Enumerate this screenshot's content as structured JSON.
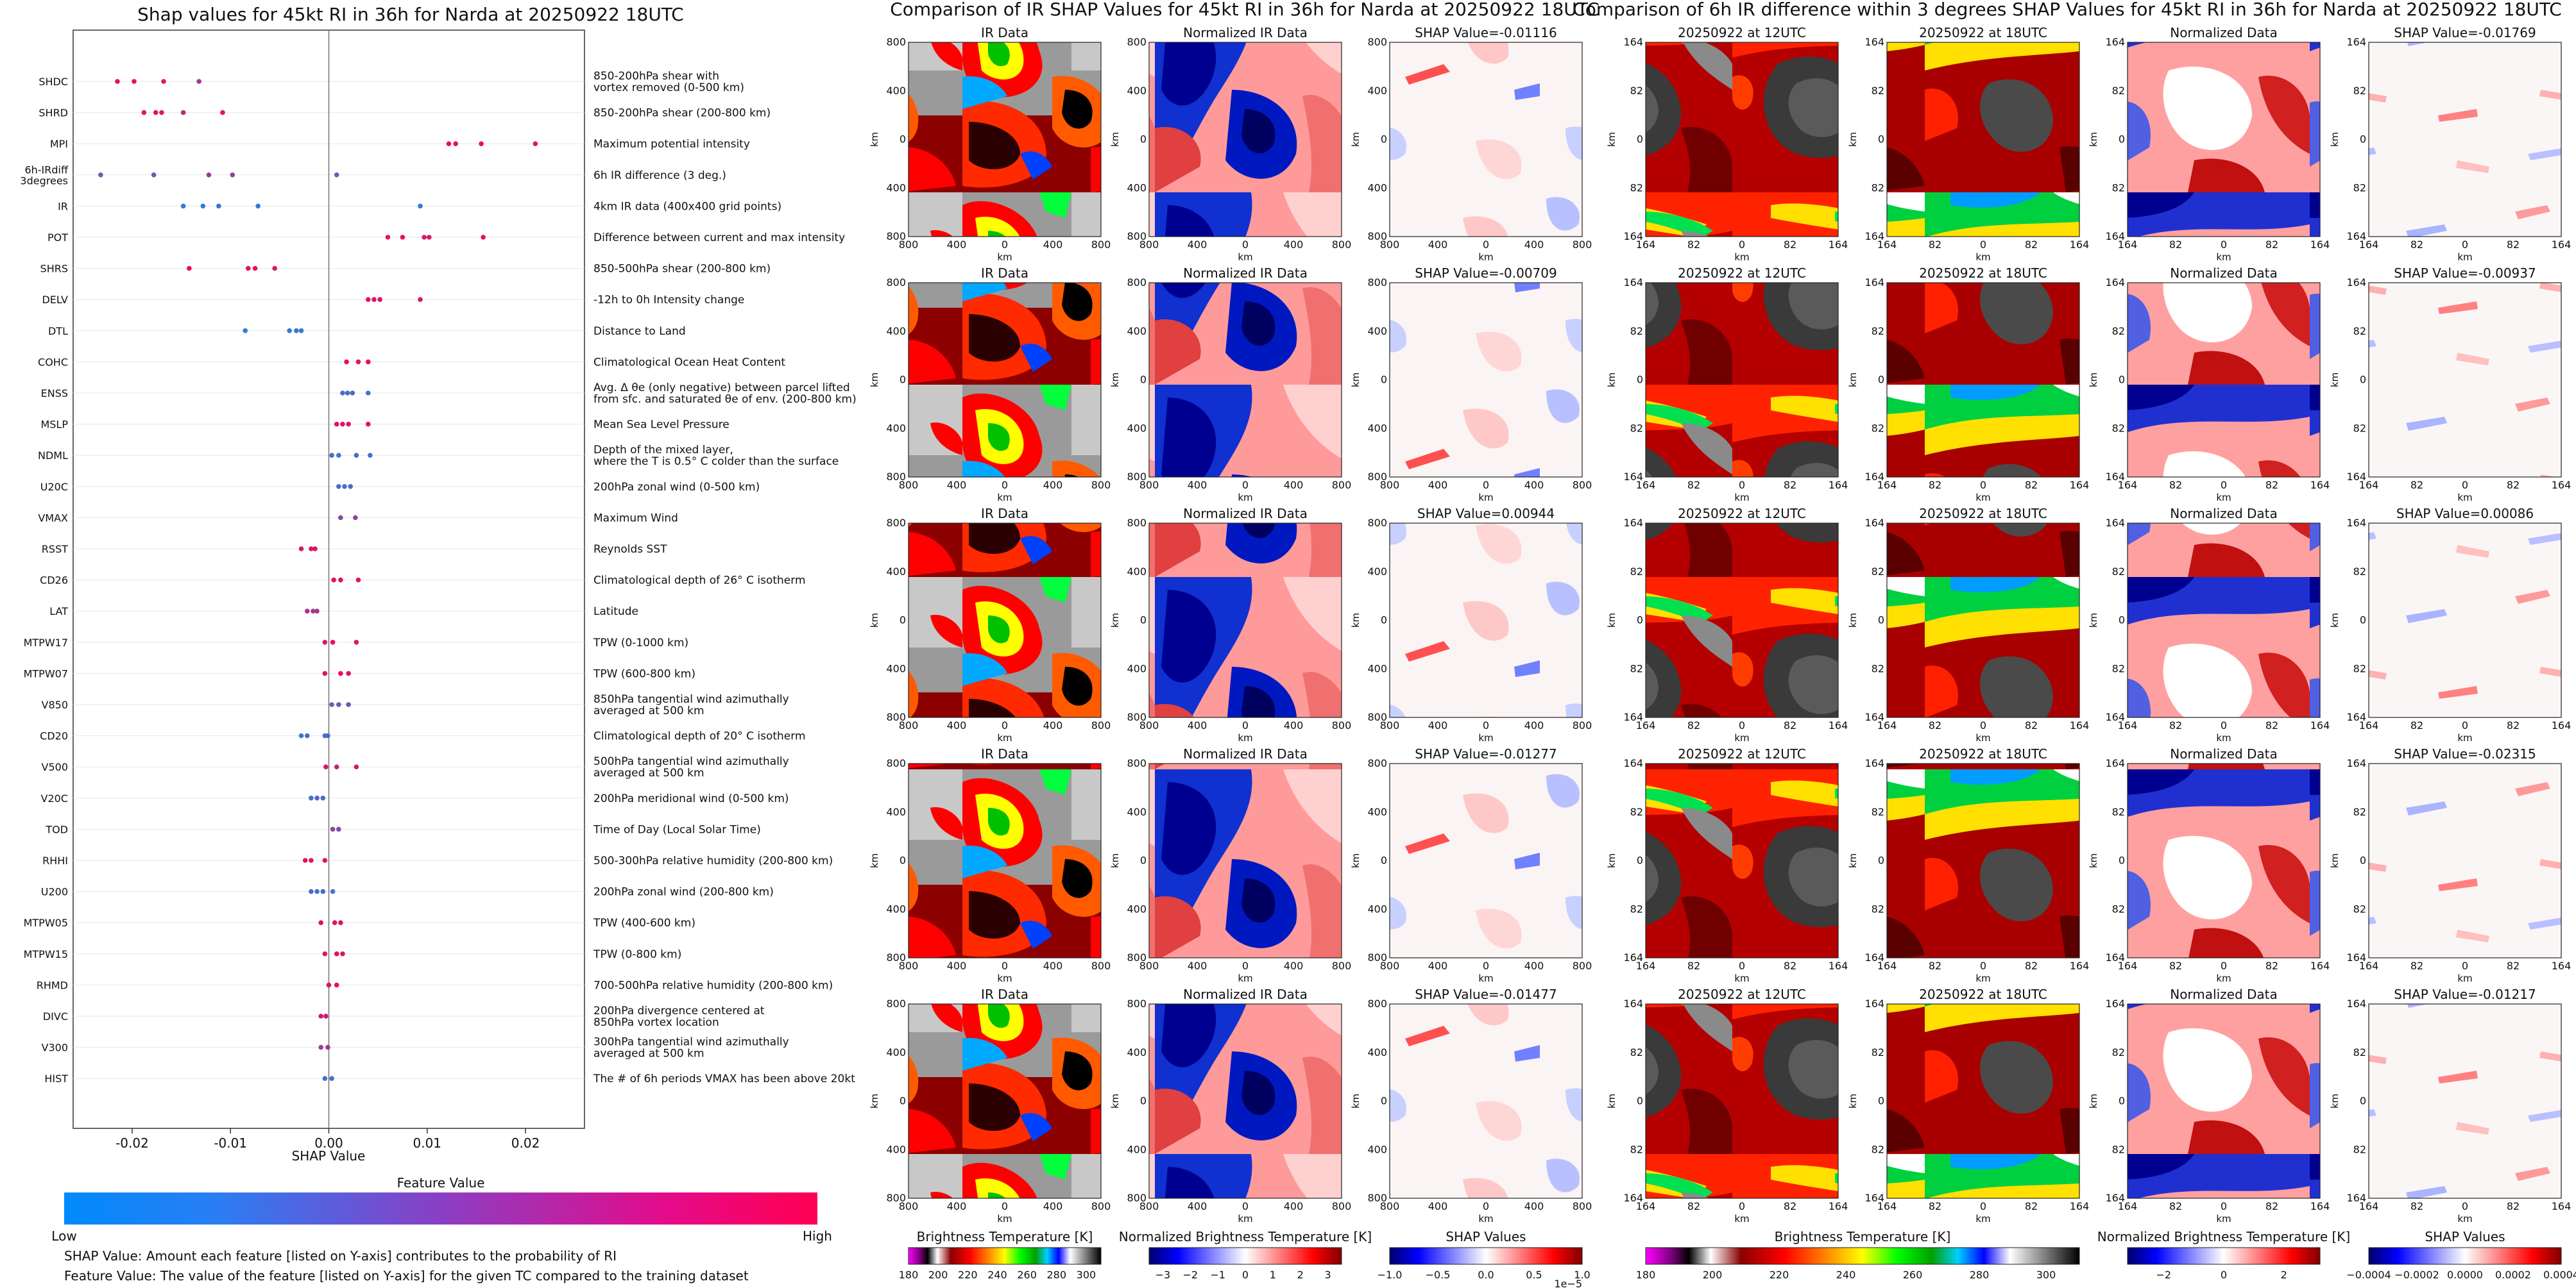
{
  "chart_data": [
    {
      "type": "scatter",
      "title": "Shap values for 45kt RI in 36h for Narda at 20250922 18UTC",
      "xlabel": "SHAP Value",
      "xlim": [
        -0.026,
        0.026
      ],
      "xticks": [
        "-0.02",
        "-0.01",
        "0.00",
        "0.01",
        "0.02"
      ],
      "xtick_values": [
        -0.02,
        -0.01,
        0.0,
        0.01,
        0.02
      ],
      "colorbar": {
        "title": "Feature Value",
        "low": "Low",
        "high": "High",
        "low_color": "#1e88e5",
        "high_color": "#ff0052"
      },
      "notes": [
        "SHAP Value: Amount each feature [listed on Y-axis] contributes to the probability of RI",
        "Feature Value: The value of the feature [listed on Y-axis] for the given TC compared to the training dataset"
      ],
      "features": [
        {
          "name": "SHDC",
          "desc": "850-200hPa shear with\nvortex removed (0-500 km)",
          "points": [
            [
              -0.0215,
              0.9
            ],
            [
              -0.0198,
              0.9
            ],
            [
              -0.0168,
              0.85
            ],
            [
              -0.0132,
              0.6
            ]
          ]
        },
        {
          "name": "SHRD",
          "desc": "850-200hPa shear (200-800 km)",
          "points": [
            [
              -0.0188,
              0.85
            ],
            [
              -0.0176,
              0.9
            ],
            [
              -0.017,
              0.8
            ],
            [
              -0.0148,
              0.7
            ],
            [
              -0.0108,
              0.85
            ]
          ]
        },
        {
          "name": "MPI",
          "desc": "Maximum potential intensity",
          "points": [
            [
              0.0122,
              0.9
            ],
            [
              0.0129,
              0.85
            ],
            [
              0.0155,
              0.9
            ],
            [
              0.021,
              0.8
            ]
          ]
        },
        {
          "name": "6h-IRdiff\n3degrees",
          "desc": "6h IR difference (3 deg.)",
          "points": [
            [
              -0.0232,
              0.3
            ],
            [
              -0.0178,
              0.35
            ],
            [
              -0.0122,
              0.55
            ],
            [
              -0.0098,
              0.5
            ],
            [
              0.0008,
              0.3
            ]
          ]
        },
        {
          "name": "IR",
          "desc": "4km IR data (400x400 grid points)",
          "points": [
            [
              -0.0148,
              0.1
            ],
            [
              -0.0128,
              0.1
            ],
            [
              -0.0112,
              0.15
            ],
            [
              -0.0072,
              0.1
            ],
            [
              0.0093,
              0.1
            ]
          ]
        },
        {
          "name": "POT",
          "desc": "Difference between current and max intensity",
          "points": [
            [
              0.006,
              0.85
            ],
            [
              0.0075,
              0.9
            ],
            [
              0.0097,
              0.8
            ],
            [
              0.0102,
              0.85
            ],
            [
              0.0157,
              0.9
            ]
          ]
        },
        {
          "name": "SHRS",
          "desc": "850-500hPa shear (200-800 km)",
          "points": [
            [
              -0.0142,
              0.9
            ],
            [
              -0.0082,
              0.85
            ],
            [
              -0.0075,
              0.9
            ],
            [
              -0.0055,
              0.8
            ]
          ]
        },
        {
          "name": "DELV",
          "desc": "-12h to 0h Intensity change",
          "points": [
            [
              0.004,
              0.9
            ],
            [
              0.0046,
              0.85
            ],
            [
              0.0052,
              0.9
            ],
            [
              0.0093,
              0.85
            ]
          ]
        },
        {
          "name": "DTL",
          "desc": "Distance to Land",
          "points": [
            [
              -0.0085,
              0.1
            ],
            [
              -0.004,
              0.1
            ],
            [
              -0.0033,
              0.15
            ],
            [
              -0.0028,
              0.1
            ]
          ]
        },
        {
          "name": "COHC",
          "desc": "Climatological Ocean Heat Content",
          "points": [
            [
              0.0018,
              0.9
            ],
            [
              0.003,
              0.85
            ],
            [
              0.004,
              0.9
            ]
          ]
        },
        {
          "name": "ENSS",
          "desc": "Avg. Δ θe (only negative) between parcel lifted\nfrom sfc. and saturated θe of env. (200-800 km)",
          "points": [
            [
              0.0014,
              0.2
            ],
            [
              0.0019,
              0.2
            ],
            [
              0.0024,
              0.25
            ],
            [
              0.004,
              0.15
            ]
          ]
        },
        {
          "name": "MSLP",
          "desc": "Mean Sea Level Pressure",
          "points": [
            [
              0.0008,
              0.85
            ],
            [
              0.0014,
              0.9
            ],
            [
              0.002,
              0.85
            ],
            [
              0.004,
              0.9
            ]
          ]
        },
        {
          "name": "NDML",
          "desc": "Depth of the mixed layer,\nwhere the T is 0.5° C colder than the surface",
          "points": [
            [
              0.0003,
              0.2
            ],
            [
              0.001,
              0.15
            ],
            [
              0.0028,
              0.2
            ],
            [
              0.0042,
              0.15
            ]
          ]
        },
        {
          "name": "U20C",
          "desc": "200hPa zonal wind (0-500 km)",
          "points": [
            [
              0.001,
              0.2
            ],
            [
              0.0016,
              0.15
            ],
            [
              0.0022,
              0.2
            ]
          ]
        },
        {
          "name": "VMAX",
          "desc": "Maximum Wind",
          "points": [
            [
              0.0012,
              0.45
            ],
            [
              0.0027,
              0.5
            ]
          ]
        },
        {
          "name": "RSST",
          "desc": "Reynolds SST",
          "points": [
            [
              -0.0028,
              0.85
            ],
            [
              -0.0018,
              0.8
            ],
            [
              -0.0014,
              0.9
            ]
          ]
        },
        {
          "name": "CD26",
          "desc": "Climatological depth of 26° C isotherm",
          "points": [
            [
              0.0005,
              0.85
            ],
            [
              0.0012,
              0.9
            ],
            [
              0.003,
              0.85
            ]
          ]
        },
        {
          "name": "LAT",
          "desc": "Latitude",
          "points": [
            [
              -0.0022,
              0.6
            ],
            [
              -0.0016,
              0.55
            ],
            [
              -0.0012,
              0.6
            ]
          ]
        },
        {
          "name": "MTPW17",
          "desc": "TPW (0-1000 km)",
          "points": [
            [
              -0.0004,
              0.85
            ],
            [
              0.0004,
              0.9
            ],
            [
              0.0028,
              0.85
            ]
          ]
        },
        {
          "name": "MTPW07",
          "desc": "TPW (600-800 km)",
          "points": [
            [
              -0.0004,
              0.85
            ],
            [
              0.0012,
              0.9
            ],
            [
              0.002,
              0.85
            ]
          ]
        },
        {
          "name": "V850",
          "desc": "850hPa tangential wind azimuthally\naveraged at 500 km",
          "points": [
            [
              0.0003,
              0.3
            ],
            [
              0.001,
              0.35
            ],
            [
              0.002,
              0.4
            ]
          ]
        },
        {
          "name": "CD20",
          "desc": "Climatological depth of 20° C isotherm",
          "points": [
            [
              -0.0028,
              0.15
            ],
            [
              -0.0022,
              0.2
            ],
            [
              -0.0004,
              0.15
            ],
            [
              -0.0001,
              0.2
            ]
          ]
        },
        {
          "name": "V500",
          "desc": "500hPa tangential wind azimuthally\naveraged at 500 km",
          "points": [
            [
              -0.0003,
              0.85
            ],
            [
              0.0008,
              0.7
            ],
            [
              0.0028,
              0.8
            ]
          ]
        },
        {
          "name": "V20C",
          "desc": "200hPa meridional wind (0-500 km)",
          "points": [
            [
              -0.0018,
              0.2
            ],
            [
              -0.0012,
              0.25
            ],
            [
              -0.0006,
              0.2
            ]
          ]
        },
        {
          "name": "TOD",
          "desc": "Time of Day (Local Solar Time)",
          "points": [
            [
              0.0004,
              0.5
            ],
            [
              0.001,
              0.45
            ]
          ]
        },
        {
          "name": "RHHI",
          "desc": "500-300hPa relative humidity (200-800 km)",
          "points": [
            [
              -0.0024,
              0.9
            ],
            [
              -0.0018,
              0.85
            ],
            [
              -0.0004,
              0.9
            ]
          ]
        },
        {
          "name": "U200",
          "desc": "200hPa zonal wind (200-800 km)",
          "points": [
            [
              -0.0018,
              0.2
            ],
            [
              -0.0012,
              0.15
            ],
            [
              -0.0006,
              0.2
            ],
            [
              0.0004,
              0.15
            ]
          ]
        },
        {
          "name": "MTPW05",
          "desc": "TPW (400-600 km)",
          "points": [
            [
              -0.0008,
              0.9
            ],
            [
              0.0006,
              0.85
            ],
            [
              0.0012,
              0.9
            ]
          ]
        },
        {
          "name": "MTPW15",
          "desc": "TPW (0-800 km)",
          "points": [
            [
              -0.0004,
              0.85
            ],
            [
              0.0008,
              0.9
            ],
            [
              0.0014,
              0.85
            ]
          ]
        },
        {
          "name": "RHMD",
          "desc": "700-500hPa relative humidity (200-800 km)",
          "points": [
            [
              0.0,
              0.85
            ],
            [
              0.0008,
              0.9
            ]
          ]
        },
        {
          "name": "DIVC",
          "desc": "200hPa divergence centered at\n850hPa vortex location",
          "points": [
            [
              -0.0008,
              0.8
            ],
            [
              -0.0003,
              0.85
            ]
          ]
        },
        {
          "name": "V300",
          "desc": "300hPa tangential wind azimuthally\naveraged at 500 km",
          "points": [
            [
              -0.0008,
              0.55
            ],
            [
              -0.0001,
              0.6
            ]
          ]
        },
        {
          "name": "HIST",
          "desc": "The # of 6h periods VMAX has been above 20kt",
          "points": [
            [
              -0.0004,
              0.2
            ],
            [
              0.0003,
              0.15
            ]
          ]
        }
      ]
    },
    {
      "type": "heatmap",
      "title": "Comparison of IR SHAP Values for 45kt RI in 36h for Narda at 20250922 18UTC",
      "rows": 5,
      "column_titles": [
        "IR Data",
        "Normalized IR Data",
        "SHAP Value"
      ],
      "shap_values": [
        "-0.01116",
        "-0.00709",
        "0.00944",
        "-0.01277",
        "-0.01477"
      ],
      "axis_label": "km",
      "xticks": [
        "800",
        "400",
        "0",
        "400",
        "800"
      ],
      "yticks": [
        "800",
        "400",
        "0",
        "400",
        "800"
      ],
      "colorbars": [
        {
          "label": "Brightness Temperature [K]",
          "ticks": [
            "180",
            "200",
            "220",
            "240",
            "260",
            "280",
            "300"
          ],
          "vmin": 180,
          "vmax": 310,
          "cmap": "ir"
        },
        {
          "label": "Normalized Brightness Temperature [K]",
          "ticks": [
            "−3",
            "−2",
            "−1",
            "0",
            "1",
            "2",
            "3"
          ],
          "vmin": -3.5,
          "vmax": 3.5,
          "cmap": "bwr"
        },
        {
          "label": "SHAP Values",
          "ticks": [
            "−1.0",
            "−0.5",
            "0.0",
            "0.5",
            "1.0"
          ],
          "vmin": -1.0,
          "vmax": 1.0,
          "cmap": "bwr",
          "offset": "1e−5"
        }
      ]
    },
    {
      "type": "heatmap",
      "title": "Comparison of 6h IR difference within 3 degrees SHAP Values for 45kt RI in 36h for Narda at 20250922 18UTC",
      "rows": 5,
      "column_titles": [
        "20250922 at 12UTC",
        "20250922 at 18UTC",
        "Normalized Data",
        "SHAP Value"
      ],
      "shap_values": [
        "-0.01769",
        "-0.00937",
        "0.00086",
        "-0.02315",
        "-0.01217"
      ],
      "axis_label": "km",
      "xticks": [
        "164",
        "82",
        "0",
        "82",
        "164"
      ],
      "yticks": [
        "164",
        "82",
        "0",
        "82",
        "164"
      ],
      "colorbars": [
        {
          "label": "Brightness Temperature [K]",
          "ticks": [
            "180",
            "200",
            "220",
            "240",
            "260",
            "280",
            "300"
          ],
          "vmin": 180,
          "vmax": 310,
          "cmap": "ir"
        },
        {
          "label": "Normalized Brightness Temperature [K]",
          "ticks": [
            "−2",
            "0",
            "2"
          ],
          "vmin": -3.2,
          "vmax": 3.2,
          "cmap": "bwr"
        },
        {
          "label": "SHAP Values",
          "ticks": [
            "−0.0004",
            "−0.0002",
            "0.0000",
            "0.0002",
            "0.0004"
          ],
          "vmin": -0.0004,
          "vmax": 0.0004,
          "cmap": "bwr"
        }
      ]
    }
  ]
}
